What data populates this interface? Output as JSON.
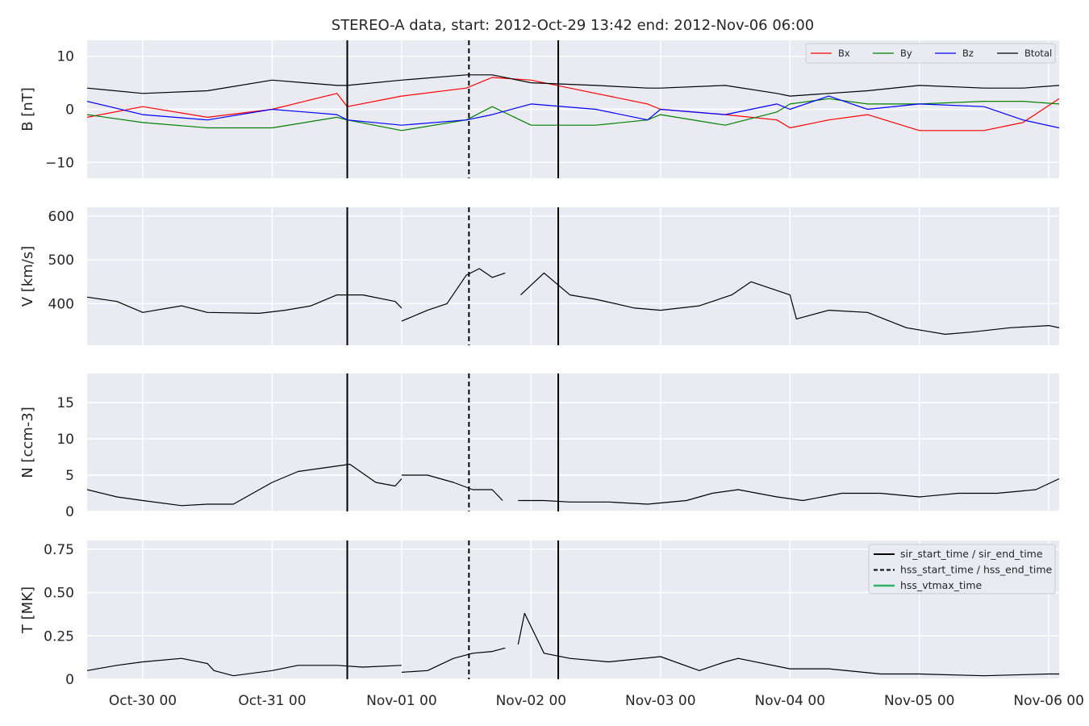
{
  "title": "STEREO-A data, start: 2012-Oct-29 13:42  end: 2012-Nov-06 06:00",
  "colors": {
    "panel_bg": "#eaeaf2",
    "grid": "#ffffff",
    "bx": "#ff0000",
    "by": "#008000",
    "bz": "#0000ff",
    "btotal": "#000000",
    "vtmax": "#2fb36b"
  },
  "chart_data": [
    {
      "type": "line",
      "ylabel": "B [nT]",
      "ylim": [
        -13,
        13
      ],
      "yticks": [
        -10,
        0,
        10
      ],
      "grid": true,
      "legend": {
        "placement": "top-right",
        "entries": [
          "Bx",
          "By",
          "Bz",
          "Btotal"
        ]
      },
      "series": [
        {
          "name": "Bx",
          "x": [
            -0.43,
            0,
            0.5,
            1,
            1.5,
            1.58,
            2,
            2.5,
            2.7,
            3,
            3.5,
            3.9,
            4,
            4.5,
            4.9,
            5,
            5.3,
            5.6,
            6,
            6.5,
            6.8,
            7.08
          ],
          "values": [
            -1.5,
            0.5,
            -1.5,
            0,
            3,
            0.5,
            2.5,
            4,
            6,
            5.5,
            3,
            1,
            0,
            -1,
            -2,
            -3.5,
            -2,
            -1,
            -4,
            -4,
            -2.5,
            2
          ]
        },
        {
          "name": "By",
          "x": [
            -0.43,
            0,
            0.5,
            1,
            1.5,
            1.58,
            2,
            2.5,
            2.7,
            3,
            3.5,
            3.9,
            4,
            4.5,
            4.9,
            5,
            5.3,
            5.6,
            6,
            6.5,
            6.8,
            7.08
          ],
          "values": [
            -1,
            -2.5,
            -3.5,
            -3.5,
            -1.5,
            -2,
            -4,
            -2,
            0.5,
            -3,
            -3,
            -2,
            -1,
            -3,
            -0.5,
            1,
            2,
            1,
            1,
            1.5,
            1.5,
            1
          ]
        },
        {
          "name": "Bz",
          "x": [
            -0.43,
            0,
            0.5,
            1,
            1.5,
            1.58,
            2,
            2.5,
            2.7,
            3,
            3.5,
            3.9,
            4,
            4.5,
            4.9,
            5,
            5.3,
            5.6,
            6,
            6.5,
            6.8,
            7.08
          ],
          "values": [
            1.5,
            -1,
            -2,
            0,
            -1,
            -2,
            -3,
            -2,
            -1,
            1,
            0,
            -2,
            0,
            -1,
            1,
            0,
            2.5,
            0,
            1,
            0.5,
            -2,
            -3.5
          ]
        },
        {
          "name": "Btotal",
          "x": [
            -0.43,
            0,
            0.5,
            1,
            1.5,
            1.58,
            2,
            2.5,
            2.7,
            3,
            3.5,
            3.9,
            4,
            4.5,
            4.9,
            5,
            5.3,
            5.6,
            6,
            6.5,
            6.8,
            7.08
          ],
          "values": [
            4,
            3,
            3.5,
            5.5,
            4.5,
            4.5,
            5.5,
            6.5,
            6.5,
            5,
            4.5,
            4,
            4,
            4.5,
            3,
            2.5,
            3,
            3.5,
            4.5,
            4,
            4,
            4.5
          ]
        }
      ]
    },
    {
      "type": "line",
      "ylabel": "V [km/s]",
      "ylim": [
        305,
        620
      ],
      "yticks": [
        400,
        500,
        600
      ],
      "grid": true,
      "series": [
        {
          "name": "",
          "x": [
            -0.43,
            -0.2,
            0,
            0.3,
            0.5,
            0.9,
            1.1,
            1.3,
            1.5,
            1.7,
            1.95,
            2.0,
            null,
            2.0,
            2.2,
            2.35,
            2.5,
            2.6,
            2.7,
            2.8,
            null,
            2.92,
            3.1,
            3.3,
            3.5,
            3.8,
            4.0,
            4.3,
            4.55,
            4.7,
            5.0,
            5.05,
            5.3,
            5.6,
            5.9,
            6.2,
            6.4,
            6.7,
            7.0,
            7.08
          ],
          "values": [
            415,
            405,
            380,
            395,
            380,
            378,
            385,
            395,
            420,
            420,
            405,
            390,
            null,
            360,
            385,
            400,
            465,
            480,
            460,
            470,
            null,
            420,
            470,
            420,
            410,
            390,
            385,
            395,
            420,
            450,
            420,
            365,
            385,
            380,
            345,
            330,
            335,
            345,
            350,
            345
          ]
        }
      ]
    },
    {
      "type": "line",
      "ylabel": "N [ccm-3]",
      "ylim": [
        0,
        19
      ],
      "yticks": [
        0,
        5,
        10,
        15
      ],
      "grid": true,
      "series": [
        {
          "name": "",
          "x": [
            -0.43,
            -0.2,
            0,
            0.3,
            0.5,
            0.7,
            1.0,
            1.2,
            1.4,
            1.6,
            1.8,
            1.95,
            2.0,
            null,
            2.0,
            2.2,
            2.4,
            2.55,
            2.7,
            2.78,
            null,
            2.9,
            3.1,
            3.3,
            3.6,
            3.9,
            4.2,
            4.4,
            4.6,
            4.9,
            5.1,
            5.4,
            5.7,
            6.0,
            6.3,
            6.6,
            6.9,
            7.08
          ],
          "values": [
            3,
            2,
            1.5,
            0.8,
            1,
            1,
            4,
            5.5,
            6,
            6.5,
            4,
            3.5,
            4.5,
            null,
            5,
            5,
            4,
            3,
            3,
            1.5,
            null,
            1.5,
            1.5,
            1.3,
            1.3,
            1,
            1.5,
            2.5,
            3,
            2,
            1.5,
            2.5,
            2.5,
            2,
            2.5,
            2.5,
            3,
            4.5
          ]
        }
      ]
    },
    {
      "type": "line",
      "ylabel": "T [MK]",
      "ylim": [
        0,
        0.8
      ],
      "yticks": [
        0,
        0.25,
        0.5,
        0.75
      ],
      "grid": true,
      "legend": {
        "placement": "top-right",
        "entries": [
          "sir_start_time / sir_end_time",
          "hss_start_time / hss_end_time",
          "hss_vtmax_time"
        ]
      },
      "series": [
        {
          "name": "",
          "x": [
            -0.43,
            -0.2,
            0,
            0.3,
            0.5,
            0.55,
            0.7,
            1.0,
            1.2,
            1.5,
            1.7,
            2.0,
            null,
            2.0,
            2.2,
            2.4,
            2.55,
            2.7,
            2.8,
            null,
            2.9,
            2.95,
            3.1,
            3.3,
            3.6,
            4.0,
            4.3,
            4.5,
            4.6,
            5.0,
            5.3,
            5.7,
            6.0,
            6.5,
            7.0,
            7.08
          ],
          "values": [
            0.05,
            0.08,
            0.1,
            0.12,
            0.09,
            0.05,
            0.02,
            0.05,
            0.08,
            0.08,
            0.07,
            0.08,
            null,
            0.04,
            0.05,
            0.12,
            0.15,
            0.16,
            0.18,
            null,
            0.2,
            0.38,
            0.15,
            0.12,
            0.1,
            0.13,
            0.05,
            0.1,
            0.12,
            0.06,
            0.06,
            0.03,
            0.03,
            0.02,
            0.03,
            0.03
          ]
        }
      ]
    }
  ],
  "x_axis": {
    "range": [
      -0.43,
      7.08
    ],
    "tick_values": [
      0,
      1,
      2,
      3,
      4,
      5,
      6,
      7
    ],
    "tick_labels": [
      "Oct-30 00",
      "Oct-31 00",
      "Nov-01 00",
      "Nov-02 00",
      "Nov-03 00",
      "Nov-04 00",
      "Nov-05 00",
      "Nov-06 00"
    ]
  },
  "event_lines": {
    "sir_start_time": 1.58,
    "sir_end_time": 3.21,
    "hss_start_time": 2.52
  }
}
